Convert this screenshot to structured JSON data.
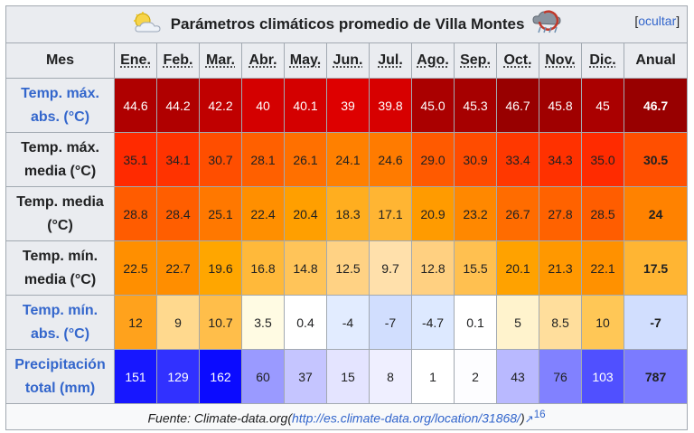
{
  "caption": {
    "title": "Parámetros climáticos promedio de Villa Montes",
    "hide_label": "ocultar",
    "left_icon": "sun-cloud-icon",
    "right_icon": "storm-icon"
  },
  "header": {
    "row_label": "Mes",
    "months": [
      "Ene.",
      "Feb.",
      "Mar.",
      "Abr.",
      "May.",
      "Jun.",
      "Jul.",
      "Ago.",
      "Sep.",
      "Oct.",
      "Nov.",
      "Dic."
    ],
    "annual_label": "Anual"
  },
  "rows": [
    {
      "label_line1": "Temp. máx.",
      "label_line2": "abs. (°C)",
      "link": true,
      "values": [
        "44.6",
        "44.2",
        "42.2",
        "40",
        "40.1",
        "39",
        "39.8",
        "45.0",
        "45.3",
        "46.7",
        "45.8",
        "45"
      ],
      "annual": "46.7",
      "colors": [
        "#af0000",
        "#b00000",
        "#c00000",
        "#d40000",
        "#d40000",
        "#de0000",
        "#d70000",
        "#aa0000",
        "#a60000",
        "#980000",
        "#a00000",
        "#aa0000"
      ],
      "annual_color": "#980000",
      "text_colors": [
        "#ffffff",
        "#ffffff",
        "#ffffff",
        "#ffffff",
        "#ffffff",
        "#ffffff",
        "#ffffff",
        "#ffffff",
        "#ffffff",
        "#ffffff",
        "#ffffff",
        "#ffffff"
      ],
      "annual_text_color": "#ffffff"
    },
    {
      "label_line1": "Temp. máx.",
      "label_line2": "media (°C)",
      "link": false,
      "values": [
        "35.1",
        "34.1",
        "30.7",
        "28.1",
        "26.1",
        "24.1",
        "24.6",
        "29.0",
        "30.9",
        "33.4",
        "34.3",
        "35.0"
      ],
      "annual": "30.5",
      "colors": [
        "#ff2a00",
        "#ff3300",
        "#ff4e00",
        "#ff6000",
        "#ff7000",
        "#ff8000",
        "#ff7b00",
        "#ff5a00",
        "#ff4c00",
        "#ff3800",
        "#ff3100",
        "#ff2b00"
      ],
      "annual_color": "#ff4f00",
      "text_colors": [
        "#202122",
        "#202122",
        "#202122",
        "#202122",
        "#202122",
        "#202122",
        "#202122",
        "#202122",
        "#202122",
        "#202122",
        "#202122",
        "#202122"
      ],
      "annual_text_color": "#202122"
    },
    {
      "label_line1": "Temp. media",
      "label_line2": "(°C)",
      "link": false,
      "values": [
        "28.8",
        "28.4",
        "25.1",
        "22.4",
        "20.4",
        "18.3",
        "17.1",
        "20.9",
        "23.2",
        "26.7",
        "27.8",
        "28.5"
      ],
      "annual": "24",
      "colors": [
        "#ff5c00",
        "#ff5e00",
        "#ff7800",
        "#ff8f00",
        "#ff9f00",
        "#ffae1f",
        "#ffb533",
        "#ff9b00",
        "#ff8800",
        "#ff6c00",
        "#ff6200",
        "#ff5d00"
      ],
      "annual_color": "#ff8200",
      "text_colors": [
        "#202122",
        "#202122",
        "#202122",
        "#202122",
        "#202122",
        "#202122",
        "#202122",
        "#202122",
        "#202122",
        "#202122",
        "#202122",
        "#202122"
      ],
      "annual_text_color": "#202122"
    },
    {
      "label_line1": "Temp. mín.",
      "label_line2": "media (°C)",
      "link": false,
      "values": [
        "22.5",
        "22.7",
        "19.6",
        "16.8",
        "14.8",
        "12.5",
        "9.7",
        "12.8",
        "15.5",
        "20.1",
        "21.3",
        "22.1"
      ],
      "annual": "17.5",
      "colors": [
        "#ff8f00",
        "#ff8e00",
        "#ffa600",
        "#ffb93a",
        "#ffc459",
        "#ffd284",
        "#ffe0ab",
        "#ffd081",
        "#ffc050",
        "#ffa200",
        "#ff9800",
        "#ff9100"
      ],
      "annual_color": "#ffb533",
      "text_colors": [
        "#202122",
        "#202122",
        "#202122",
        "#202122",
        "#202122",
        "#202122",
        "#202122",
        "#202122",
        "#202122",
        "#202122",
        "#202122",
        "#202122"
      ],
      "annual_text_color": "#202122"
    },
    {
      "label_line1": "Temp. mín.",
      "label_line2": "abs. (°C)",
      "link": true,
      "values": [
        "12",
        "9",
        "10.7",
        "3.5",
        "0.4",
        "-4",
        "-7",
        "-4.7",
        "0.1",
        "5",
        "8.5",
        "10"
      ],
      "annual": "-7",
      "colors": [
        "#ffa21c",
        "#ffd98e",
        "#ffbe4a",
        "#fffbe3",
        "#ffffff",
        "#e2ecff",
        "#d1defe",
        "#dde9ff",
        "#ffffff",
        "#fff3cd",
        "#ffde9c",
        "#ffc756"
      ],
      "annual_color": "#d1defe",
      "text_colors": [
        "#202122",
        "#202122",
        "#202122",
        "#202122",
        "#202122",
        "#202122",
        "#202122",
        "#202122",
        "#202122",
        "#202122",
        "#202122",
        "#202122"
      ],
      "annual_text_color": "#202122"
    },
    {
      "label_line1": "Precipitación",
      "label_line2": "total (mm)",
      "link": true,
      "values": [
        "151",
        "129",
        "162",
        "60",
        "37",
        "15",
        "8",
        "1",
        "2",
        "43",
        "76",
        "103"
      ],
      "annual": "787",
      "colors": [
        "#1717ff",
        "#3131ff",
        "#0b0bff",
        "#9a9aff",
        "#c5c5ff",
        "#e4e4ff",
        "#efefff",
        "#ffffff",
        "#fdfdff",
        "#b9b9ff",
        "#8181ff",
        "#5050ff"
      ],
      "annual_color": "#7b7bff",
      "text_colors": [
        "#ffffff",
        "#ffffff",
        "#ffffff",
        "#202122",
        "#202122",
        "#202122",
        "#202122",
        "#202122",
        "#202122",
        "#202122",
        "#202122",
        "#ffffff"
      ],
      "annual_text_color": "#202122"
    }
  ],
  "source": {
    "prefix": "Fuente: Climate-data.org(",
    "link_text": "http://es.climate-data.org/location/31868/",
    "suffix": ")",
    "ref": "16"
  }
}
